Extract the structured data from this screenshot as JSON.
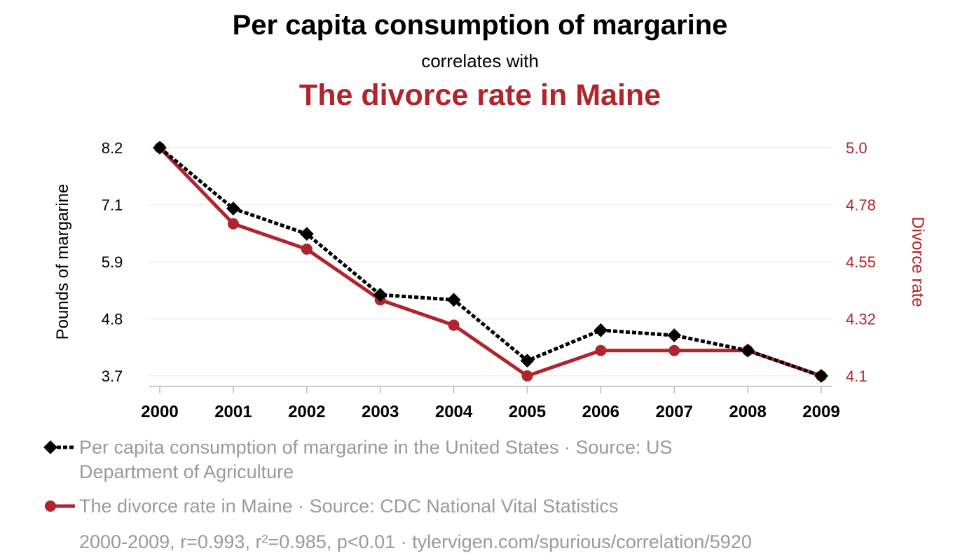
{
  "header": {
    "title": "Per capita consumption of margarine",
    "subtitle": "correlates with",
    "title2": "The divorce rate in Maine"
  },
  "colors": {
    "series1": "#000000",
    "series2": "#b0252c",
    "legend_text": "#9a9a9a",
    "grid": "#eeeeee"
  },
  "chart_data": {
    "type": "line",
    "x": [
      2000,
      2001,
      2002,
      2003,
      2004,
      2005,
      2006,
      2007,
      2008,
      2009
    ],
    "xlabel": "",
    "y_left": {
      "label": "Pounds of margarine",
      "ticks": [
        "8.2",
        "7.1",
        "5.9",
        "4.8",
        "3.7"
      ],
      "range": [
        3.7,
        8.2
      ]
    },
    "y_right": {
      "label": "Divorce rate",
      "ticks": [
        "5.0",
        "4.78",
        "4.55",
        "4.32",
        "4.1"
      ],
      "range": [
        4.1,
        5.0
      ]
    },
    "grid": true,
    "legend_placement": "bottom",
    "series": [
      {
        "name": "Per capita consumption of margarine in the United States · Source: US Department of Agriculture",
        "axis": "left",
        "marker": "diamond",
        "style": "dashed",
        "values": [
          8.2,
          7.0,
          6.5,
          5.3,
          5.2,
          4.0,
          4.6,
          4.5,
          4.2,
          3.7
        ]
      },
      {
        "name": "The divorce rate in Maine · Source: CDC National Vital Statistics",
        "axis": "right",
        "marker": "circle",
        "style": "solid",
        "values": [
          5.0,
          4.7,
          4.6,
          4.4,
          4.3,
          4.1,
          4.2,
          4.2,
          4.2,
          4.1
        ]
      }
    ],
    "footnote": "2000-2009, r=0.993, r²=0.985, p<0.01 · tylervigen.com/spurious/correlation/5920"
  }
}
